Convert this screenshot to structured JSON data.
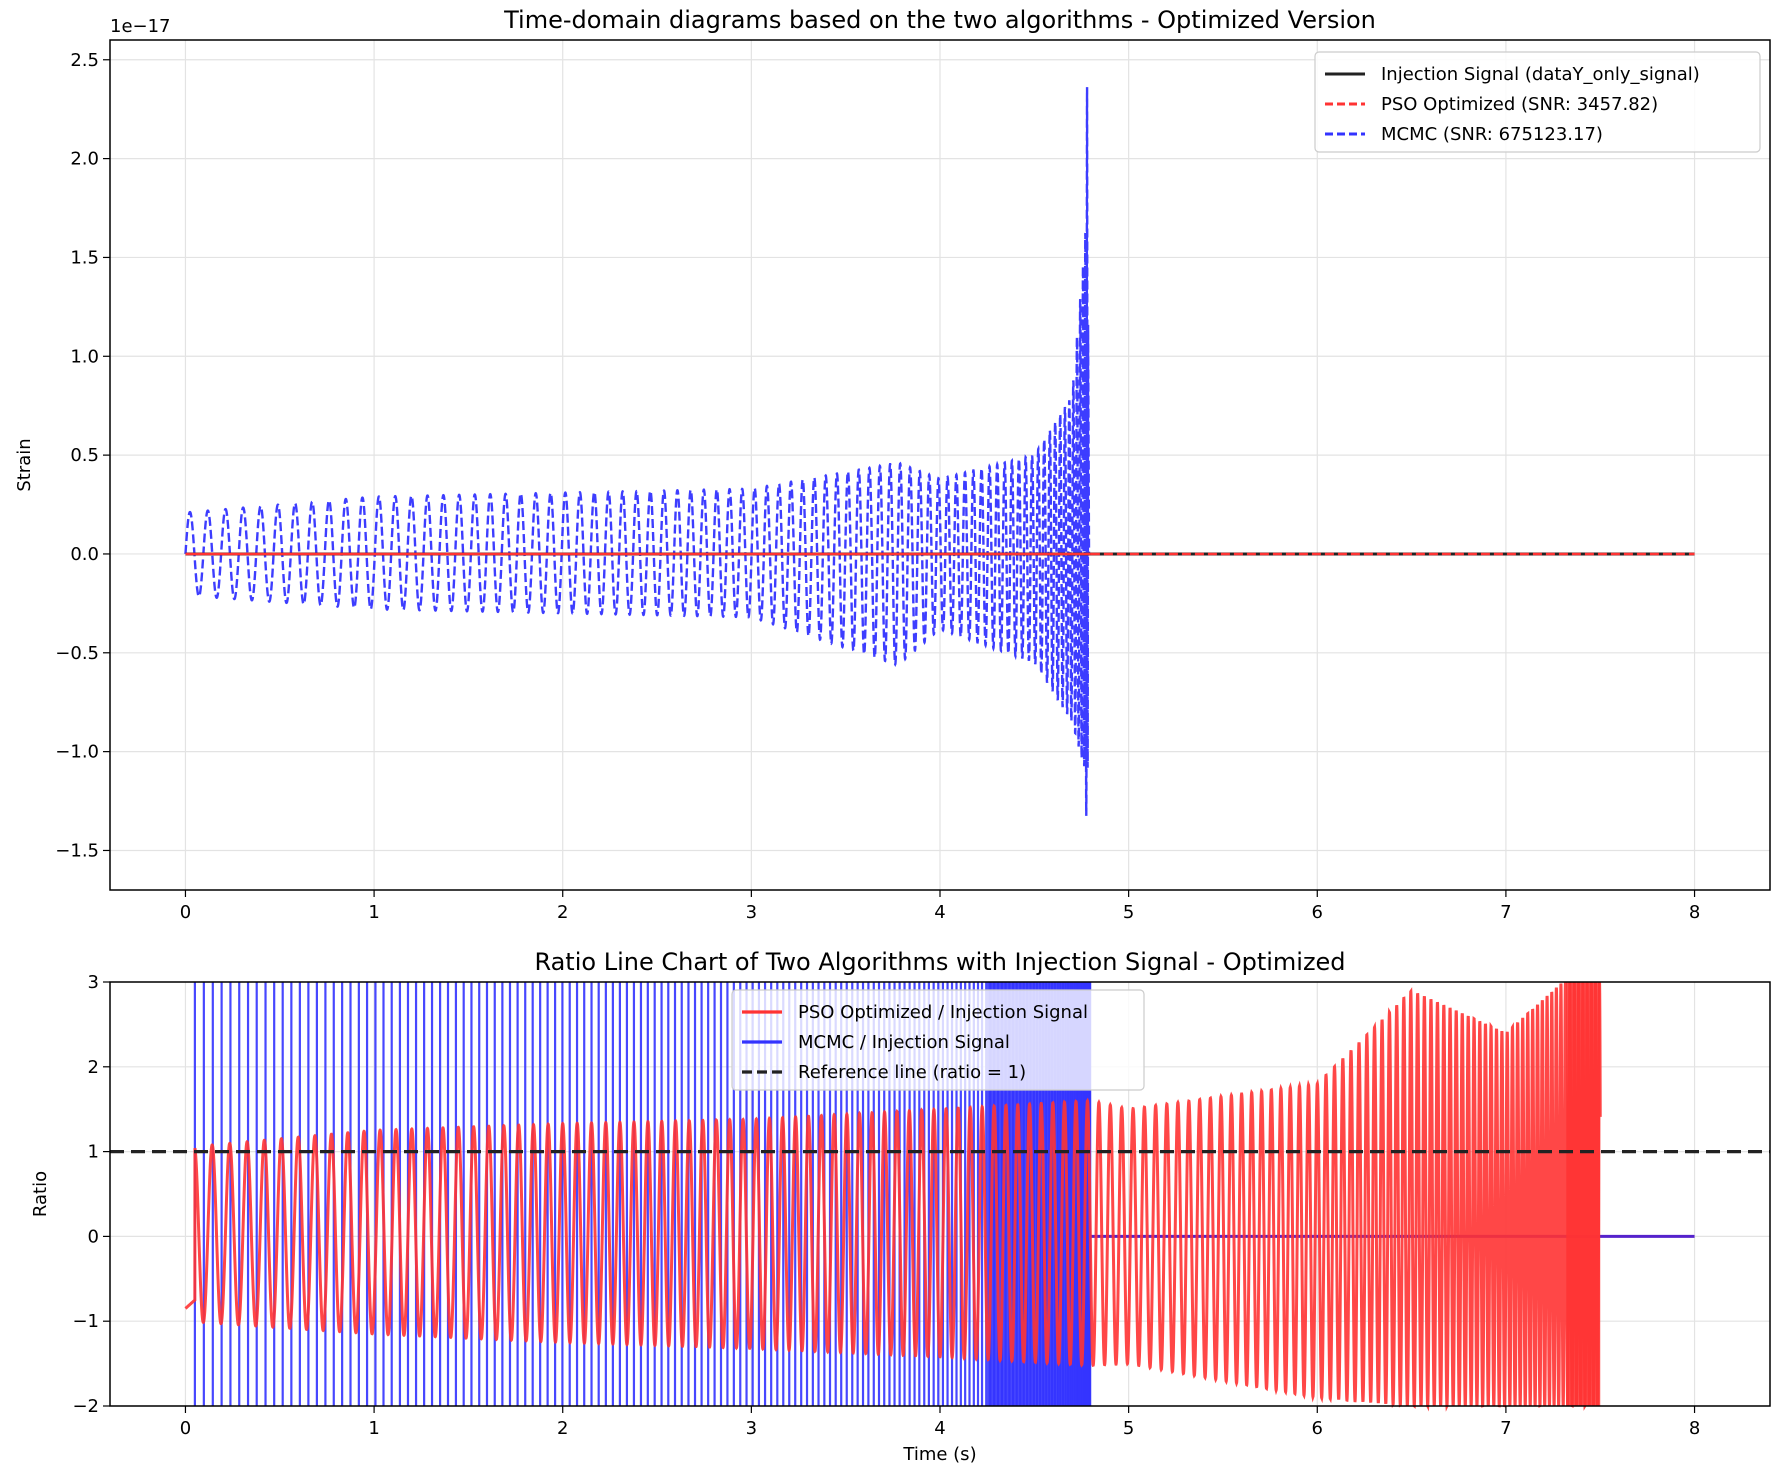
{
  "chart_data": [
    {
      "type": "line",
      "title": "Time-domain diagrams based on the two algorithms - Optimized Version",
      "xlabel": "",
      "ylabel": "Strain",
      "y_offset_label": "1e−17",
      "xlim": [
        -0.4,
        8.4
      ],
      "ylim": [
        -1.7,
        2.6
      ],
      "xticks": [
        0,
        1,
        2,
        3,
        4,
        5,
        6,
        7,
        8
      ],
      "xtick_labels": [
        "0",
        "1",
        "2",
        "3",
        "4",
        "5",
        "6",
        "7",
        "8"
      ],
      "yticks": [
        -1.5,
        -1.0,
        -0.5,
        0.0,
        0.5,
        1.0,
        1.5,
        2.0,
        2.5
      ],
      "ytick_labels": [
        "−1.5",
        "−1.0",
        "−0.5",
        "0.0",
        "0.5",
        "1.0",
        "1.5",
        "2.0",
        "2.5"
      ],
      "grid": true,
      "legend_position": "top-right",
      "series": [
        {
          "name": "Injection Signal (dataY_only_signal)",
          "color": "#222222",
          "style": "solid",
          "x": [
            0,
            8
          ],
          "y": [
            0,
            0
          ]
        },
        {
          "name": "PSO Optimized (SNR: 3457.82)",
          "color": "#ff3333",
          "style": "dashed",
          "x": [
            0,
            8
          ],
          "y": [
            0,
            0
          ]
        },
        {
          "name": "MCMC (SNR: 675123.17)",
          "color": "#3333ff",
          "style": "dashed",
          "x": [
            0,
            1,
            2,
            3,
            3.77,
            3.78,
            4,
            4.5,
            4.7,
            4.77,
            4.78,
            4.79,
            8
          ],
          "envelope_max": [
            0.21,
            0.29,
            0.31,
            0.33,
            0.46,
            0.46,
            0.38,
            0.5,
            0.8,
            1.6,
            2.42,
            0,
            0
          ],
          "envelope_min": [
            -0.21,
            -0.28,
            -0.3,
            -0.32,
            -0.56,
            -0.56,
            -0.38,
            -0.55,
            -0.85,
            -1.1,
            -1.52,
            0,
            0
          ]
        }
      ]
    },
    {
      "type": "line",
      "title": "Ratio Line Chart of Two Algorithms with Injection Signal - Optimized",
      "xlabel": "Time (s)",
      "ylabel": "Ratio",
      "xlim": [
        -0.4,
        8.4
      ],
      "ylim": [
        -2,
        3
      ],
      "xticks": [
        0,
        1,
        2,
        3,
        4,
        5,
        6,
        7,
        8
      ],
      "xtick_labels": [
        "0",
        "1",
        "2",
        "3",
        "4",
        "5",
        "6",
        "7",
        "8"
      ],
      "yticks": [
        -2,
        -1,
        0,
        1,
        2,
        3
      ],
      "ytick_labels": [
        "−2",
        "−1",
        "0",
        "1",
        "2",
        "3"
      ],
      "grid": true,
      "legend_position": "top-center",
      "series": [
        {
          "name": "PSO Optimized / Injection Signal",
          "color": "#ff3333",
          "style": "solid",
          "x": [
            0,
            1,
            2,
            3,
            4,
            4.8,
            5,
            6,
            6.5,
            7,
            7.3,
            7.5
          ],
          "envelope_max": [
            1.05,
            1.25,
            1.33,
            1.38,
            1.5,
            1.6,
            1.5,
            1.8,
            2.9,
            2.4,
            3,
            3
          ],
          "envelope_min": [
            -1.0,
            -1.15,
            -1.25,
            -1.32,
            -1.42,
            -1.52,
            -1.5,
            -1.9,
            -2,
            -2,
            -2,
            -2
          ]
        },
        {
          "name": "MCMC / Injection Signal",
          "color": "#3333ff",
          "style": "solid",
          "x": [
            0.05,
            4.8,
            8
          ],
          "y_note_span": [
            -2,
            3
          ],
          "y_after": 0
        },
        {
          "name": "Reference line (ratio = 1)",
          "color": "#222222",
          "style": "dashed",
          "x": [
            -0.4,
            8.4
          ],
          "y": [
            1,
            1
          ]
        }
      ]
    }
  ]
}
